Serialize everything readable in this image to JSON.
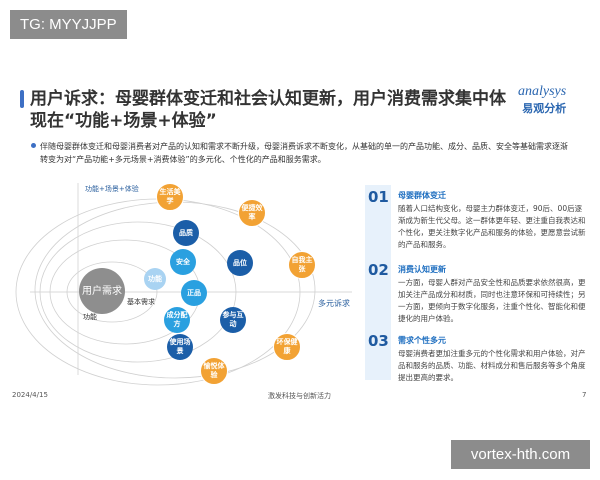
{
  "watermarks": {
    "top": "TG: MYYJJPP",
    "bottom": "vortex-hth.com"
  },
  "header": {
    "title": "用户诉求：母婴群体变迁和社会认知更新，用户消费需求集中体现在“功能+场景+体验”",
    "logo_en": "analysys",
    "logo_cn": "易观分析"
  },
  "bullet": "伴随母婴群体变迁和母婴消费者对产品的认知和需求不断升级，母婴消费诉求不断变化，从基础的单一的产品功能、成分、品质、安全等基础需求逐渐转变为对“产品功能+多元场景+消费体验”的多元化、个性化的产品和服务需求。",
  "diagram": {
    "y_axis": "功能+场景+体验",
    "x_axis": "多元诉求",
    "center": "用户需求",
    "ring1": "基本需求",
    "ring2": "功能",
    "inner": "功能",
    "light": [
      "安全",
      "正品",
      "成分配方"
    ],
    "dark": [
      "品质",
      "品位",
      "参与互动",
      "使用场景"
    ],
    "orange": [
      "生活美学",
      "便捷效率",
      "自我主张",
      "环保健康",
      "愉悦体验"
    ],
    "colors": {
      "orange": "#f2a234",
      "dark_blue": "#1b5ea8",
      "light_blue": "#2aa0e0",
      "center": "#8e8e8e"
    }
  },
  "points": [
    {
      "num": "01",
      "title": "母婴群体变迁",
      "text": "随着人口结构变化，母婴主力群体变迁，90后、00后逐渐成为新生代父母。这一群体更年轻、更注重自我表达和个性化，更关注数字化产品和服务的体验，更愿意尝试新的产品和服务。"
    },
    {
      "num": "02",
      "title": "消费认知更新",
      "text": "一方面，母婴人群对产品安全性和品质要求依然很高，更加关注产品成分和材质，同时也注意环保和可持续性；另一方面，更倾向于数字化服务，注重个性化、智能化和便捷化的用户体验。"
    },
    {
      "num": "03",
      "title": "需求个性多元",
      "text": "母婴消费者更加注重多元的个性化需求和用户体验，对产品和服务的品质、功能、材料成分和售后服务等多个角度提出更高的要求。"
    }
  ],
  "footer": {
    "date": "2024/4/15",
    "slogan": "激发科技与创新活力",
    "page": "7"
  }
}
